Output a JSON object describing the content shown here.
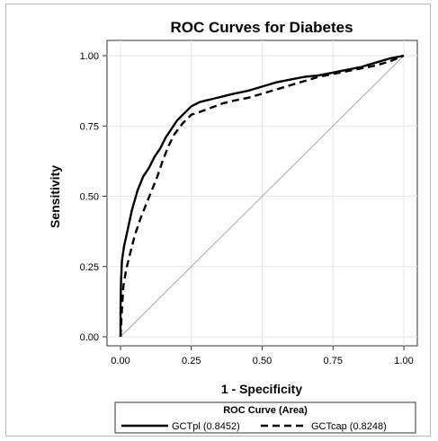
{
  "chart_data": {
    "type": "line",
    "title": "ROC Curves for Diabetes",
    "xlabel": "1 - Specificity",
    "ylabel": "Sensitivity",
    "xlim": [
      0,
      1
    ],
    "ylim": [
      0,
      1
    ],
    "x_ticks": [
      "0.00",
      "0.25",
      "0.50",
      "0.75",
      "1.00"
    ],
    "y_ticks": [
      "0.00",
      "0.25",
      "0.50",
      "0.75",
      "1.00"
    ],
    "grid": true,
    "reference_line": "diagonal",
    "legend": {
      "title": "ROC Curve (Area)",
      "position": "bottom",
      "entries": [
        "GCTpl (0.8452)",
        "GCTcap (0.8248)"
      ]
    },
    "series": [
      {
        "name": "GCTpl (0.8452)",
        "style": "solid",
        "points": [
          [
            0,
            0
          ],
          [
            0,
            0.1
          ],
          [
            0.002,
            0.2
          ],
          [
            0.005,
            0.27
          ],
          [
            0.012,
            0.32
          ],
          [
            0.025,
            0.38
          ],
          [
            0.04,
            0.45
          ],
          [
            0.06,
            0.52
          ],
          [
            0.08,
            0.57
          ],
          [
            0.1,
            0.6
          ],
          [
            0.12,
            0.64
          ],
          [
            0.14,
            0.67
          ],
          [
            0.16,
            0.71
          ],
          [
            0.18,
            0.74
          ],
          [
            0.2,
            0.77
          ],
          [
            0.22,
            0.79
          ],
          [
            0.25,
            0.82
          ],
          [
            0.28,
            0.835
          ],
          [
            0.32,
            0.845
          ],
          [
            0.36,
            0.855
          ],
          [
            0.4,
            0.865
          ],
          [
            0.45,
            0.875
          ],
          [
            0.5,
            0.89
          ],
          [
            0.55,
            0.905
          ],
          [
            0.6,
            0.915
          ],
          [
            0.65,
            0.925
          ],
          [
            0.7,
            0.93
          ],
          [
            0.75,
            0.94
          ],
          [
            0.8,
            0.95
          ],
          [
            0.85,
            0.96
          ],
          [
            0.9,
            0.975
          ],
          [
            0.95,
            0.99
          ],
          [
            1.0,
            1.0
          ]
        ]
      },
      {
        "name": "GCTcap (0.8248)",
        "style": "dashed",
        "points": [
          [
            0,
            0
          ],
          [
            0.005,
            0.1
          ],
          [
            0.01,
            0.18
          ],
          [
            0.02,
            0.24
          ],
          [
            0.035,
            0.3
          ],
          [
            0.05,
            0.36
          ],
          [
            0.07,
            0.42
          ],
          [
            0.09,
            0.47
          ],
          [
            0.11,
            0.52
          ],
          [
            0.13,
            0.57
          ],
          [
            0.15,
            0.63
          ],
          [
            0.17,
            0.68
          ],
          [
            0.19,
            0.72
          ],
          [
            0.22,
            0.76
          ],
          [
            0.25,
            0.79
          ],
          [
            0.28,
            0.8
          ],
          [
            0.32,
            0.815
          ],
          [
            0.36,
            0.83
          ],
          [
            0.4,
            0.84
          ],
          [
            0.45,
            0.85
          ],
          [
            0.5,
            0.865
          ],
          [
            0.55,
            0.88
          ],
          [
            0.6,
            0.895
          ],
          [
            0.65,
            0.91
          ],
          [
            0.7,
            0.925
          ],
          [
            0.75,
            0.935
          ],
          [
            0.8,
            0.945
          ],
          [
            0.85,
            0.955
          ],
          [
            0.9,
            0.965
          ],
          [
            0.95,
            0.98
          ],
          [
            1.0,
            1.0
          ]
        ]
      }
    ]
  }
}
